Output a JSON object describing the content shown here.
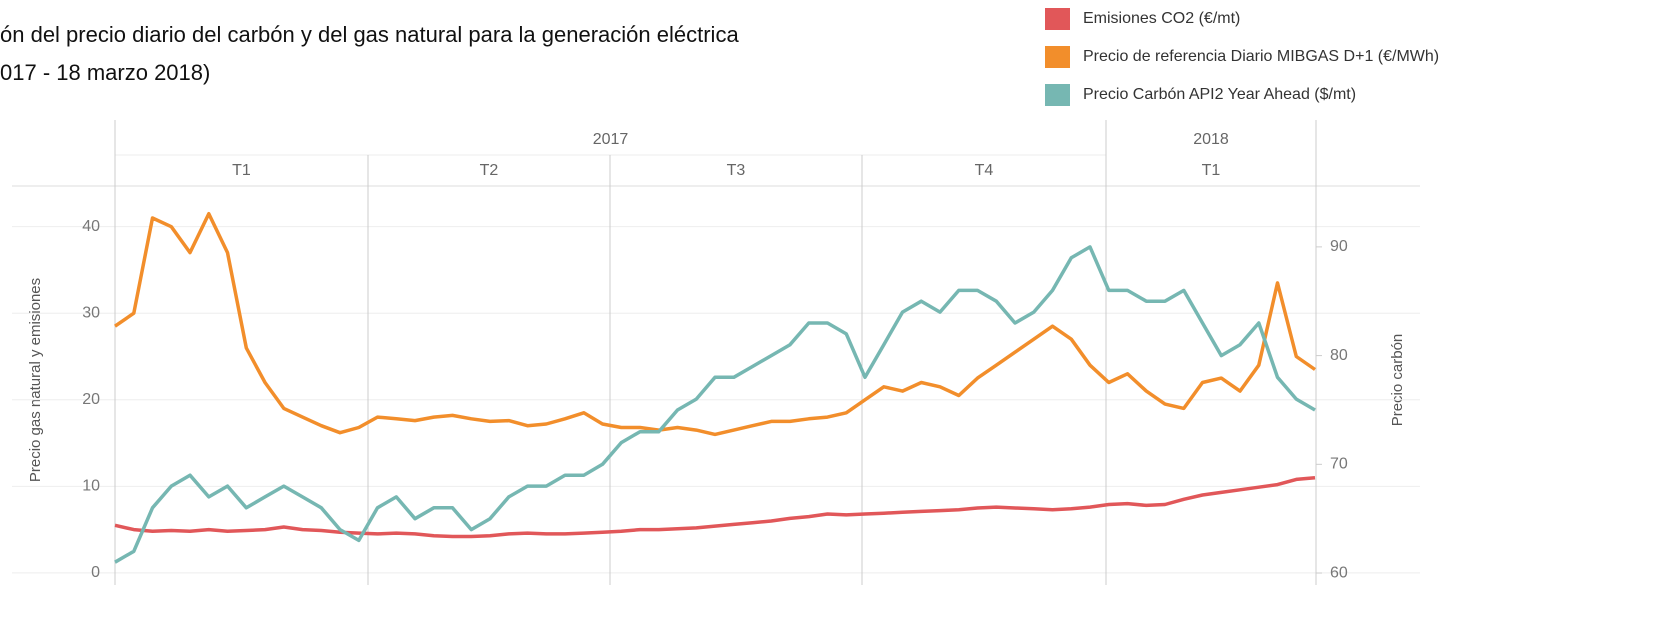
{
  "chart_data": {
    "type": "line",
    "title": [
      "ón del precio diario del carbón y del gas natural para la generación eléctrica",
      "017 - 18 marzo 2018)"
    ],
    "periods": [
      {
        "label": "2017",
        "quarters": [
          "T1",
          "T2",
          "T3",
          "T4"
        ]
      },
      {
        "label": "2018",
        "quarters": [
          "T1"
        ]
      }
    ],
    "y_label": "Precio gas natural y emisiones",
    "y2_label": "Precio carbón",
    "ylim": [
      -1.4,
      44.7
    ],
    "yticks": [
      0,
      10,
      20,
      30,
      40
    ],
    "y2lim": [
      58.9,
      95.6
    ],
    "y2ticks": [
      60,
      70,
      80,
      90
    ],
    "grid": true,
    "legend": "top-right",
    "series": [
      {
        "name": "Emisiones CO2 (€/mt)",
        "color": "#e15759",
        "values": [
          5.5,
          5,
          4.8,
          4.9,
          4.8,
          5,
          4.8,
          4.9,
          5,
          5.3,
          5,
          4.9,
          4.7,
          4.6,
          4.5,
          4.6,
          4.5,
          4.3,
          4.2,
          4.2,
          4.3,
          4.5,
          4.6,
          4.5,
          4.5,
          4.6,
          4.7,
          4.8,
          5,
          5,
          5.1,
          5.2,
          5.4,
          5.6,
          5.8,
          6,
          6.3,
          6.5,
          6.8,
          6.7,
          6.8,
          6.9,
          7,
          7.1,
          7.2,
          7.3,
          7.5,
          7.6,
          7.5,
          7.4,
          7.3,
          7.4,
          7.6,
          7.9,
          8,
          7.8,
          7.9,
          8.5,
          9,
          9.3,
          9.6,
          9.9,
          10.2,
          10.8,
          11
        ]
      },
      {
        "name": "Precio de referencia Diario MIBGAS D+1 (€/MWh)",
        "color": "#f28e2b",
        "values": [
          28.5,
          30,
          41,
          40,
          37,
          41.5,
          37,
          26,
          22,
          19,
          18,
          17,
          16.2,
          16.8,
          18,
          17.8,
          17.6,
          18,
          18.2,
          17.8,
          17.5,
          17.6,
          17,
          17.2,
          17.8,
          18.5,
          17.2,
          16.8,
          16.8,
          16.5,
          16.8,
          16.5,
          16,
          16.5,
          17,
          17.5,
          17.5,
          17.8,
          18,
          18.5,
          20,
          21.5,
          21,
          22,
          21.5,
          20.5,
          22.5,
          24,
          25.5,
          27,
          28.5,
          27,
          24,
          22,
          23,
          21,
          19.5,
          19,
          22,
          22.5,
          21,
          24,
          33.5,
          25,
          23.5
        ]
      },
      {
        "name": "Precio Carbón API2 Year Ahead ($/mt)",
        "color": "#76b7b2",
        "axis": "y2",
        "values": [
          61,
          62,
          66,
          68,
          69,
          67,
          68,
          66,
          67,
          68,
          67,
          66,
          64,
          63,
          66,
          67,
          65,
          66,
          66,
          64,
          65,
          67,
          68,
          68,
          69,
          69,
          70,
          72,
          73,
          73,
          75,
          76,
          78,
          78,
          79,
          80,
          81,
          83,
          83,
          82,
          78,
          81,
          84,
          85,
          84,
          86,
          86,
          85,
          83,
          84,
          86,
          89,
          90,
          86,
          86,
          85,
          85,
          86,
          83,
          80,
          81,
          83,
          78,
          76,
          75
        ]
      }
    ]
  }
}
